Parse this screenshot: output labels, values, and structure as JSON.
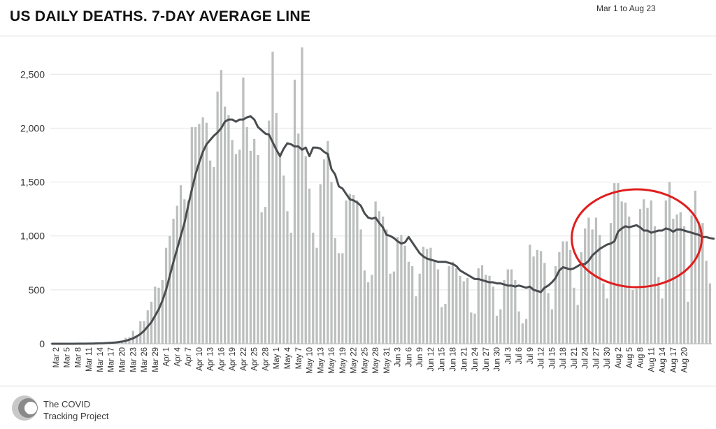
{
  "header": {
    "title": "US DAILY DEATHS. 7-DAY AVERAGE LINE",
    "date_range": "Mar 1 to Aug 23"
  },
  "footer": {
    "logo_line1": "The COVID",
    "logo_line2": "Tracking Project"
  },
  "colors": {
    "bar": "#bcbfbe",
    "line": "#4a4d50",
    "highlight_circle": "#e01e1e",
    "grid": "#e4e4e4"
  },
  "annotation": {
    "type": "circle",
    "color": "#e01e1e",
    "covers_dates": [
      "Jul 27",
      "Aug 17"
    ]
  },
  "chart_data": {
    "type": "bar",
    "series_names": [],
    "ylim": [
      0,
      2800
    ],
    "yticks": [
      0,
      500,
      1000,
      1500,
      2000,
      2500
    ],
    "ytick_labels": [
      "0",
      "500",
      "1,000",
      "1,500",
      "2,000",
      "2,500"
    ],
    "xtick_labels": [
      "Mar 2",
      "Mar 5",
      "Mar 8",
      "Mar 11",
      "Mar 14",
      "Mar 17",
      "Mar 20",
      "Mar 23",
      "Mar 26",
      "Mar 29",
      "Apr 1",
      "Apr 4",
      "Apr 7",
      "Apr 10",
      "Apr 13",
      "Apr 16",
      "Apr 19",
      "Apr 22",
      "Apr 25",
      "Apr 28",
      "May 1",
      "May 4",
      "May 7",
      "May 10",
      "May 13",
      "May 16",
      "May 19",
      "May 22",
      "May 25",
      "May 28",
      "May 31",
      "Jun 3",
      "Jun 6",
      "Jun 9",
      "Jun 12",
      "Jun 15",
      "Jun 18",
      "Jun 21",
      "Jun 24",
      "Jun 27",
      "Jun 30",
      "Jul 3",
      "Jul 6",
      "Jul 9",
      "Jul 12",
      "Jul 15",
      "Jul 18",
      "Jul 21",
      "Jul 24",
      "Jul 27",
      "Jul 30",
      "Aug 2",
      "Aug 5",
      "Aug 8",
      "Aug 11",
      "Aug 14",
      "Aug 17",
      "Aug 20"
    ],
    "daily_deaths": [
      0,
      0,
      0,
      0,
      0,
      0,
      0,
      1,
      2,
      2,
      1,
      4,
      4,
      8,
      8,
      12,
      14,
      16,
      24,
      30,
      55,
      60,
      120,
      80,
      210,
      210,
      310,
      390,
      530,
      520,
      590,
      890,
      1000,
      1160,
      1280,
      1470,
      1340,
      1330,
      2010,
      2010,
      2040,
      2100,
      2050,
      1700,
      1640,
      2340,
      2540,
      2200,
      2120,
      1890,
      1760,
      1800,
      2470,
      2010,
      1790,
      1900,
      1750,
      1220,
      1270,
      2070,
      2710,
      2140,
      1770,
      1560,
      1230,
      1030,
      2450,
      1950,
      2750,
      1740,
      1440,
      1030,
      890,
      1480,
      1710,
      1880,
      1500,
      980,
      840,
      840,
      1330,
      1390,
      1380,
      1330,
      1060,
      680,
      570,
      640,
      1320,
      1230,
      1180,
      1060,
      650,
      670,
      990,
      1010,
      910,
      760,
      720,
      440,
      650,
      900,
      880,
      890,
      760,
      690,
      340,
      370,
      720,
      760,
      700,
      630,
      580,
      610,
      290,
      280,
      700,
      730,
      640,
      630,
      530,
      260,
      320,
      590,
      690,
      690,
      590,
      300,
      190,
      230,
      920,
      810,
      870,
      860,
      750,
      470,
      320,
      720,
      850,
      950,
      950,
      870,
      520,
      360,
      850,
      1070,
      1170,
      1060,
      1170,
      1010,
      560,
      420,
      1120,
      1490,
      1490,
      1320,
      1310,
      1180,
      500,
      510,
      1250,
      1340,
      1260,
      1330,
      1090,
      620,
      420,
      1330,
      1500,
      1160,
      1200,
      1220,
      1090,
      390,
      1190,
      1420,
      1130,
      1120,
      770,
      560
    ],
    "seven_day_average": [
      0,
      0,
      0,
      0,
      0,
      0,
      0,
      1,
      1,
      1,
      2,
      2,
      3,
      4,
      5,
      7,
      9,
      11,
      15,
      20,
      27,
      38,
      50,
      68,
      90,
      120,
      160,
      200,
      260,
      320,
      400,
      500,
      630,
      760,
      880,
      1000,
      1120,
      1280,
      1430,
      1570,
      1680,
      1780,
      1850,
      1890,
      1930,
      1960,
      2000,
      2060,
      2080,
      2080,
      2060,
      2080,
      2080,
      2100,
      2110,
      2080,
      2010,
      1980,
      1950,
      1940,
      1870,
      1800,
      1740,
      1810,
      1860,
      1850,
      1830,
      1830,
      1800,
      1820,
      1740,
      1820,
      1820,
      1810,
      1780,
      1760,
      1620,
      1570,
      1460,
      1440,
      1390,
      1340,
      1330,
      1310,
      1280,
      1210,
      1170,
      1160,
      1170,
      1120,
      1080,
      1010,
      1000,
      980,
      950,
      930,
      940,
      990,
      940,
      890,
      840,
      810,
      790,
      780,
      770,
      760,
      760,
      760,
      750,
      740,
      720,
      680,
      660,
      640,
      620,
      600,
      600,
      590,
      580,
      570,
      570,
      560,
      560,
      550,
      540,
      540,
      530,
      540,
      530,
      520,
      530,
      500,
      490,
      480,
      520,
      540,
      570,
      610,
      680,
      710,
      700,
      690,
      700,
      720,
      740,
      740,
      770,
      820,
      850,
      880,
      900,
      920,
      930,
      950,
      1040,
      1070,
      1090,
      1080,
      1090,
      1100,
      1080,
      1050,
      1050,
      1030,
      1040,
      1050,
      1050,
      1070,
      1060,
      1040,
      1060,
      1060,
      1050,
      1040,
      1030,
      1020,
      1010,
      990,
      990,
      980,
      975
    ]
  }
}
